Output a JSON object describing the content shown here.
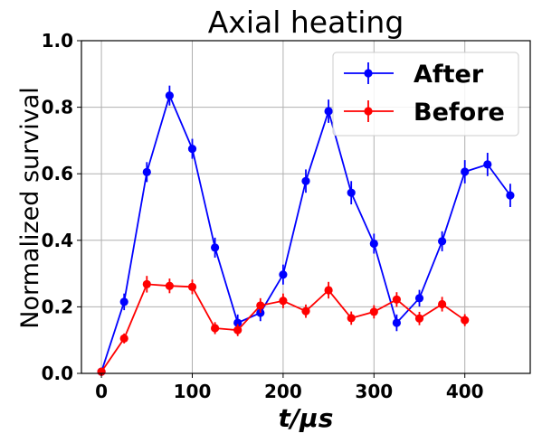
{
  "chart_data": {
    "type": "line",
    "title": "Axial heating",
    "xlabel": "t/μs",
    "ylabel": "Normalized survival",
    "xlim": [
      -22,
      472
    ],
    "ylim": [
      0,
      1.0
    ],
    "xticks": [
      0,
      100,
      200,
      300,
      400
    ],
    "yticks": [
      0.0,
      0.2,
      0.4,
      0.6,
      0.8,
      1.0
    ],
    "xtick_labels": [
      "0",
      "100",
      "200",
      "300",
      "400"
    ],
    "ytick_labels": [
      "0.0",
      "0.2",
      "0.4",
      "0.6",
      "0.8",
      "1.0"
    ],
    "grid": true,
    "legend_position": "top-right",
    "series": [
      {
        "name": "After",
        "color": "#0000ff",
        "x": [
          0,
          25,
          50,
          75,
          100,
          125,
          150,
          175,
          200,
          225,
          250,
          275,
          300,
          325,
          350,
          375,
          400,
          425,
          450
        ],
        "y": [
          0.005,
          0.215,
          0.605,
          0.835,
          0.675,
          0.378,
          0.152,
          0.182,
          0.297,
          0.578,
          0.788,
          0.543,
          0.39,
          0.152,
          0.226,
          0.397,
          0.606,
          0.628,
          0.535
        ],
        "err": [
          0.01,
          0.025,
          0.03,
          0.03,
          0.03,
          0.03,
          0.025,
          0.025,
          0.03,
          0.035,
          0.035,
          0.035,
          0.03,
          0.025,
          0.025,
          0.03,
          0.035,
          0.035,
          0.035
        ]
      },
      {
        "name": "Before",
        "color": "#ff0000",
        "x": [
          0,
          25,
          50,
          75,
          100,
          125,
          150,
          175,
          200,
          225,
          250,
          275,
          300,
          325,
          350,
          375,
          400
        ],
        "y": [
          0.005,
          0.105,
          0.268,
          0.263,
          0.26,
          0.136,
          0.13,
          0.204,
          0.218,
          0.187,
          0.25,
          0.166,
          0.185,
          0.222,
          0.165,
          0.208,
          0.16
        ],
        "err": [
          0.01,
          0.015,
          0.025,
          0.022,
          0.022,
          0.018,
          0.018,
          0.022,
          0.022,
          0.02,
          0.025,
          0.02,
          0.02,
          0.022,
          0.02,
          0.022,
          0.018
        ]
      }
    ]
  }
}
